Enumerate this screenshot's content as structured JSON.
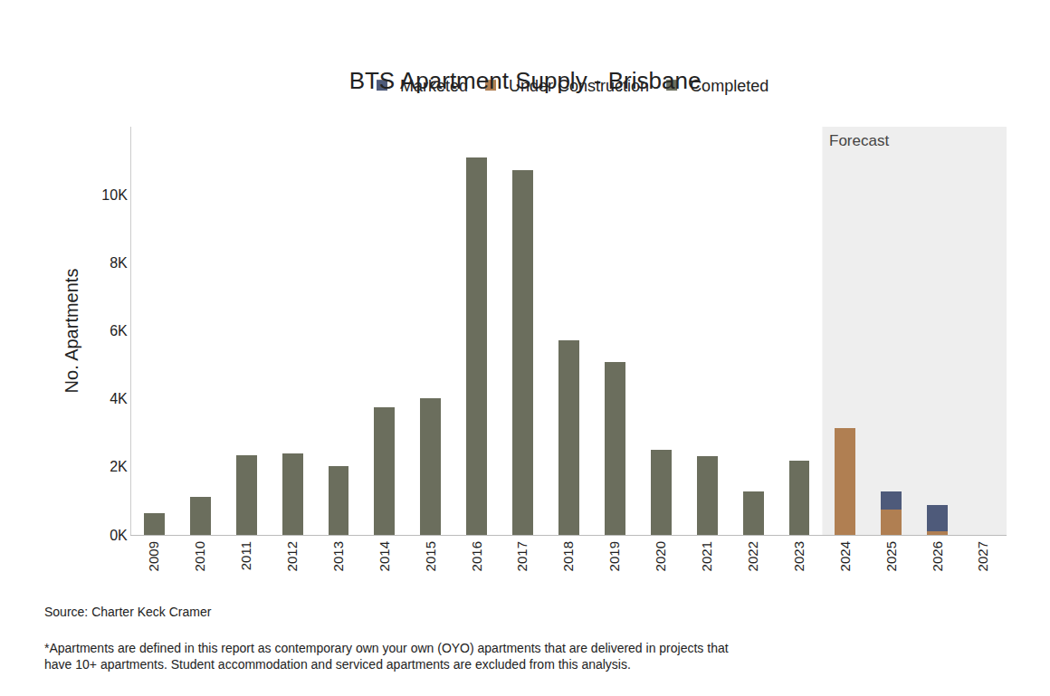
{
  "chart_data": {
    "type": "bar",
    "title": "BTS Apartment Supply - Brisbane",
    "y_label": "No. Apartments",
    "categories": [
      "2009",
      "2010",
      "2011",
      "2012",
      "2013",
      "2014",
      "2015",
      "2016",
      "2017",
      "2018",
      "2019",
      "2020",
      "2021",
      "2022",
      "2023",
      "2024",
      "2025",
      "2026",
      "2027"
    ],
    "series": [
      {
        "name": "Completed",
        "color": "#6b6e5d",
        "values": [
          650,
          1120,
          2350,
          2400,
          2030,
          3760,
          4030,
          11090,
          10720,
          5710,
          5090,
          2500,
          2320,
          1280,
          2190,
          null,
          null,
          null,
          null
        ]
      },
      {
        "name": "Under Construction",
        "color": "#b07f52",
        "values": [
          null,
          null,
          null,
          null,
          null,
          null,
          null,
          null,
          null,
          null,
          null,
          null,
          null,
          null,
          null,
          3150,
          750,
          100,
          null
        ]
      },
      {
        "name": "Marketed",
        "color": "#4e5a7a",
        "values": [
          null,
          null,
          null,
          null,
          null,
          null,
          null,
          null,
          null,
          null,
          null,
          null,
          null,
          null,
          null,
          null,
          530,
          780,
          null
        ]
      }
    ],
    "stacked": true,
    "ylim": [
      0,
      12000
    ],
    "yticks": [
      {
        "value": 0,
        "label": "0K"
      },
      {
        "value": 2000,
        "label": "2K"
      },
      {
        "value": 4000,
        "label": "4K"
      },
      {
        "value": 6000,
        "label": "6K"
      },
      {
        "value": 8000,
        "label": "8K"
      },
      {
        "value": 10000,
        "label": "10K"
      }
    ],
    "grid": false,
    "legend": "top",
    "annotations": [
      {
        "text": "Forecast",
        "x": "2024"
      }
    ],
    "source": "Source: Charter Keck Cramer",
    "note": [
      "*Apartments are defined in this report as contemporary own your own (OYO) apartments that are delivered in projects that",
      "have 10+ apartments. Student accommodation and serviced apartments are excluded from this analysis."
    ]
  }
}
